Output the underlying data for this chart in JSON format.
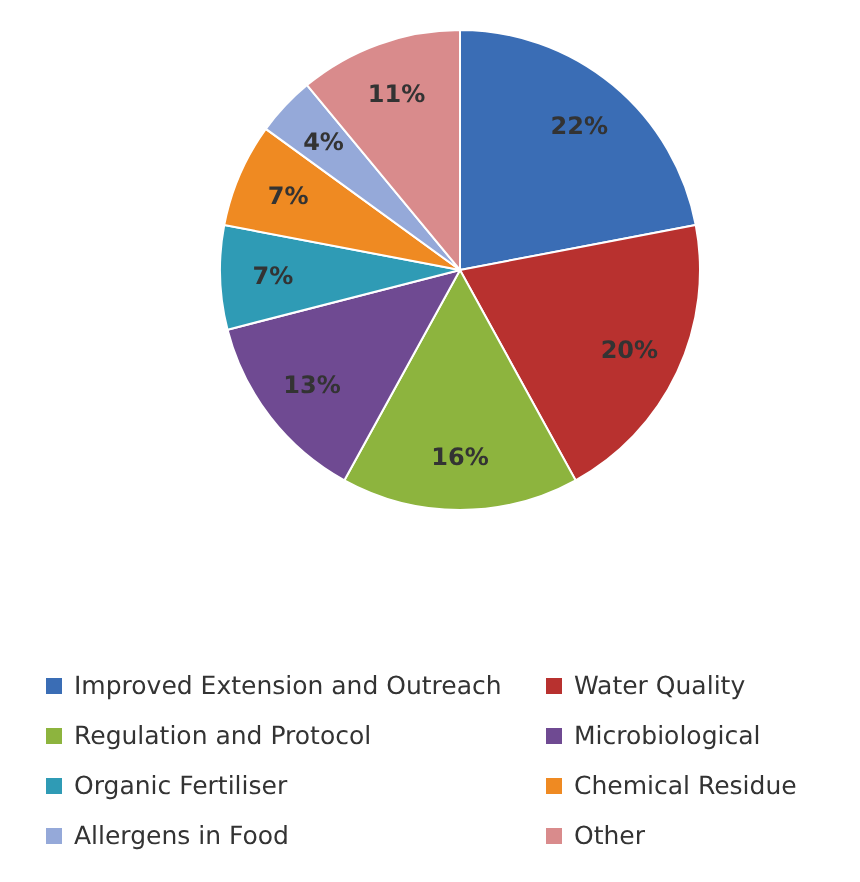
{
  "chart_data": {
    "type": "pie",
    "categories": [
      "Improved Extension and Outreach",
      "Water Quality",
      "Regulation and Protocol",
      "Microbiological",
      "Organic Fertiliser",
      "Chemical Residue",
      "Allergens in Food",
      "Other"
    ],
    "values": [
      22,
      20,
      16,
      13,
      7,
      7,
      4,
      11
    ],
    "colors": [
      "#3a6db5",
      "#b8312f",
      "#8db43e",
      "#6f4a92",
      "#2f9bb5",
      "#ef8a22",
      "#95a9d9",
      "#d98b8c"
    ],
    "value_labels": [
      "22%",
      "20%",
      "16%",
      "13%",
      "7%",
      "7%",
      "4%",
      "11%"
    ],
    "legend": "bottom"
  }
}
